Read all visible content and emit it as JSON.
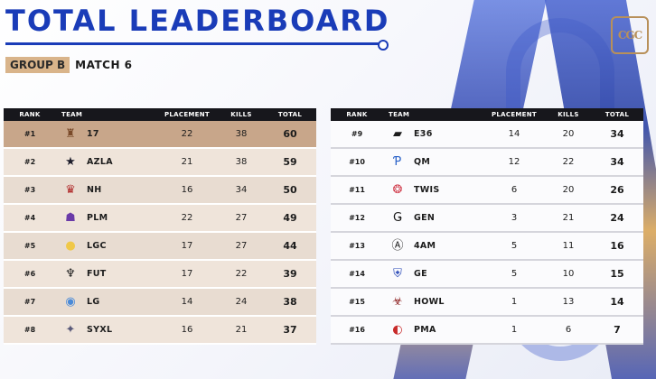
{
  "title": "TOTAL LEADERBOARD",
  "logo_text": "CGC",
  "group": "GROUP B",
  "match": "MATCH 6",
  "columns": {
    "rank": "RANK",
    "team": "TEAM",
    "placement": "PLACEMENT",
    "kills": "KILLS",
    "total": "TOTAL"
  },
  "left_rows": [
    {
      "rank": "#1",
      "team": "17",
      "placement": "22",
      "kills": "38",
      "total": "60",
      "icon": "sword-figure-icon",
      "glyph": "♜",
      "color": "#7a4a2a"
    },
    {
      "rank": "#2",
      "team": "AZLA",
      "placement": "21",
      "kills": "38",
      "total": "59",
      "icon": "star-icon",
      "glyph": "★",
      "color": "#1c1c2a"
    },
    {
      "rank": "#3",
      "team": "NH",
      "placement": "16",
      "kills": "34",
      "total": "50",
      "icon": "crown-beast-icon",
      "glyph": "♛",
      "color": "#b02a2a"
    },
    {
      "rank": "#4",
      "team": "PLM",
      "placement": "22",
      "kills": "27",
      "total": "49",
      "icon": "purple-mask-icon",
      "glyph": "☗",
      "color": "#6a3aa8"
    },
    {
      "rank": "#5",
      "team": "LGC",
      "placement": "17",
      "kills": "27",
      "total": "44",
      "icon": "gold-circle-icon",
      "glyph": "●",
      "color": "#f0c848"
    },
    {
      "rank": "#6",
      "team": "FUT",
      "placement": "17",
      "kills": "22",
      "total": "39",
      "icon": "fut-emblem-icon",
      "glyph": "♆",
      "color": "#1c1c1c"
    },
    {
      "rank": "#7",
      "team": "LG",
      "placement": "14",
      "kills": "24",
      "total": "38",
      "icon": "blue-wave-icon",
      "glyph": "◉",
      "color": "#4a8ad8"
    },
    {
      "rank": "#8",
      "team": "SYXL",
      "placement": "16",
      "kills": "21",
      "total": "37",
      "icon": "syxl-emblem-icon",
      "glyph": "✦",
      "color": "#5a5a7a"
    }
  ],
  "right_rows": [
    {
      "rank": "#9",
      "team": "E36",
      "placement": "14",
      "kills": "20",
      "total": "34",
      "icon": "e36-stripes-icon",
      "glyph": "▰",
      "color": "#1c1c1c"
    },
    {
      "rank": "#10",
      "team": "QM",
      "placement": "12",
      "kills": "22",
      "total": "34",
      "icon": "qm-p-icon",
      "glyph": "Ƥ",
      "color": "#2a62c8"
    },
    {
      "rank": "#11",
      "team": "TWIS",
      "placement": "6",
      "kills": "20",
      "total": "26",
      "icon": "brain-icon",
      "glyph": "❂",
      "color": "#d03a4a"
    },
    {
      "rank": "#12",
      "team": "GEN",
      "placement": "3",
      "kills": "21",
      "total": "24",
      "icon": "gen-letters-icon",
      "glyph": "Ǥ",
      "color": "#1c1c1c"
    },
    {
      "rank": "#13",
      "team": "4AM",
      "placement": "5",
      "kills": "11",
      "total": "16",
      "icon": "4am-logo-icon",
      "glyph": "Ⓐ",
      "color": "#1c1c1c"
    },
    {
      "rank": "#14",
      "team": "GE",
      "placement": "5",
      "kills": "10",
      "total": "15",
      "icon": "ge-shield-icon",
      "glyph": "⛨",
      "color": "#2a4ab8"
    },
    {
      "rank": "#15",
      "team": "HOWL",
      "placement": "1",
      "kills": "13",
      "total": "14",
      "icon": "howl-wolf-icon",
      "glyph": "☣",
      "color": "#8a1a1a"
    },
    {
      "rank": "#16",
      "team": "PMA",
      "placement": "1",
      "kills": "6",
      "total": "7",
      "icon": "pma-red-circle-icon",
      "glyph": "◐",
      "color": "#c82a2a"
    }
  ]
}
